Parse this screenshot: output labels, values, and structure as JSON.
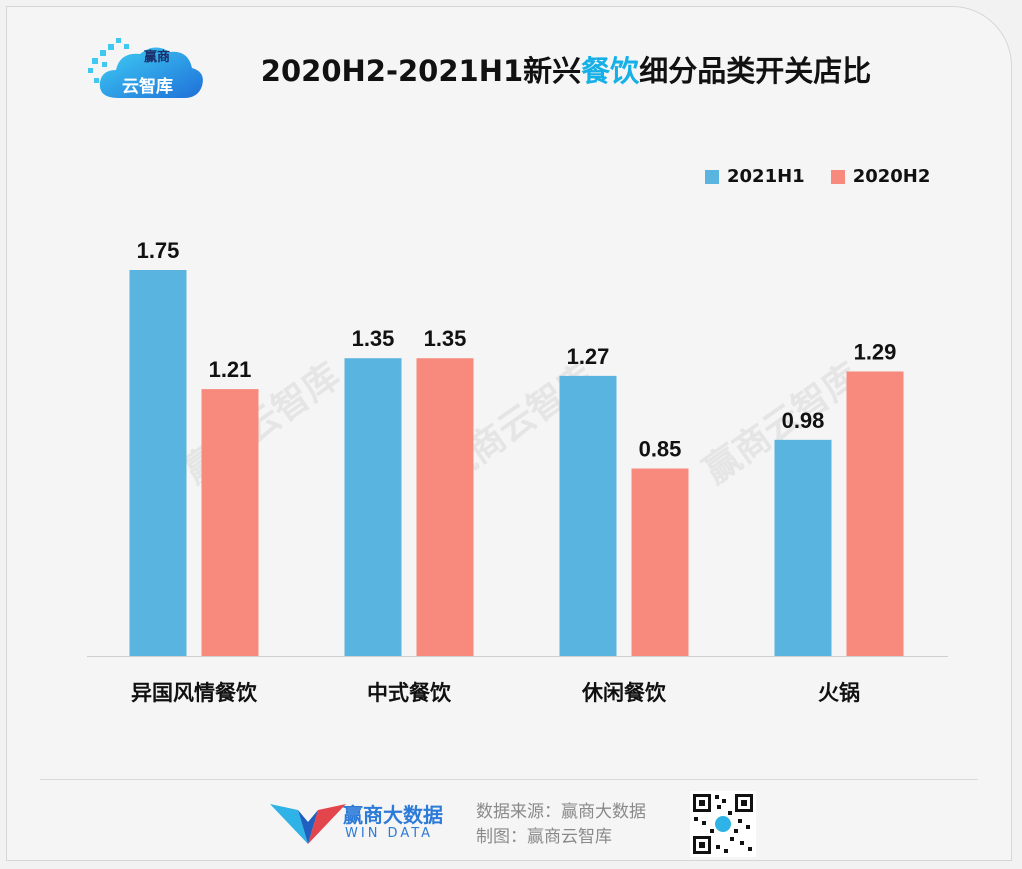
{
  "header": {
    "logo_line1": "赢商",
    "logo_line2": "云智库",
    "title_prefix": "2020H2-2021H1新兴",
    "title_highlight": "餐饮",
    "title_suffix": "细分品类开关店比"
  },
  "colors": {
    "series_2021H1": "#5ab4e0",
    "series_2020H2": "#f78a7d",
    "title_highlight": "#16b0e8"
  },
  "chart_data": {
    "type": "bar",
    "title": "2020H2-2021H1新兴餐饮细分品类开关店比",
    "categories": [
      "异国风情餐饮",
      "中式餐饮",
      "休闲餐饮",
      "火锅"
    ],
    "series": [
      {
        "name": "2021H1",
        "values": [
          1.75,
          1.35,
          1.27,
          0.98
        ]
      },
      {
        "name": "2020H2",
        "values": [
          1.21,
          1.35,
          0.85,
          1.29
        ]
      }
    ],
    "value_labels": {
      "2021H1": [
        "1.75",
        "1.35",
        "1.27",
        "0.98"
      ],
      "2020H2": [
        "1.21",
        "1.35",
        "0.85",
        "1.29"
      ]
    },
    "ylim": [
      0,
      1.75
    ],
    "grid": false,
    "legend_position": "top-right"
  },
  "footer": {
    "brand_name": "赢商大数据",
    "brand_en": "WIN DATA",
    "source_line": "数据来源：赢商大数据",
    "maker_line": "制图：赢商云智库"
  },
  "watermark": "赢商云智库"
}
